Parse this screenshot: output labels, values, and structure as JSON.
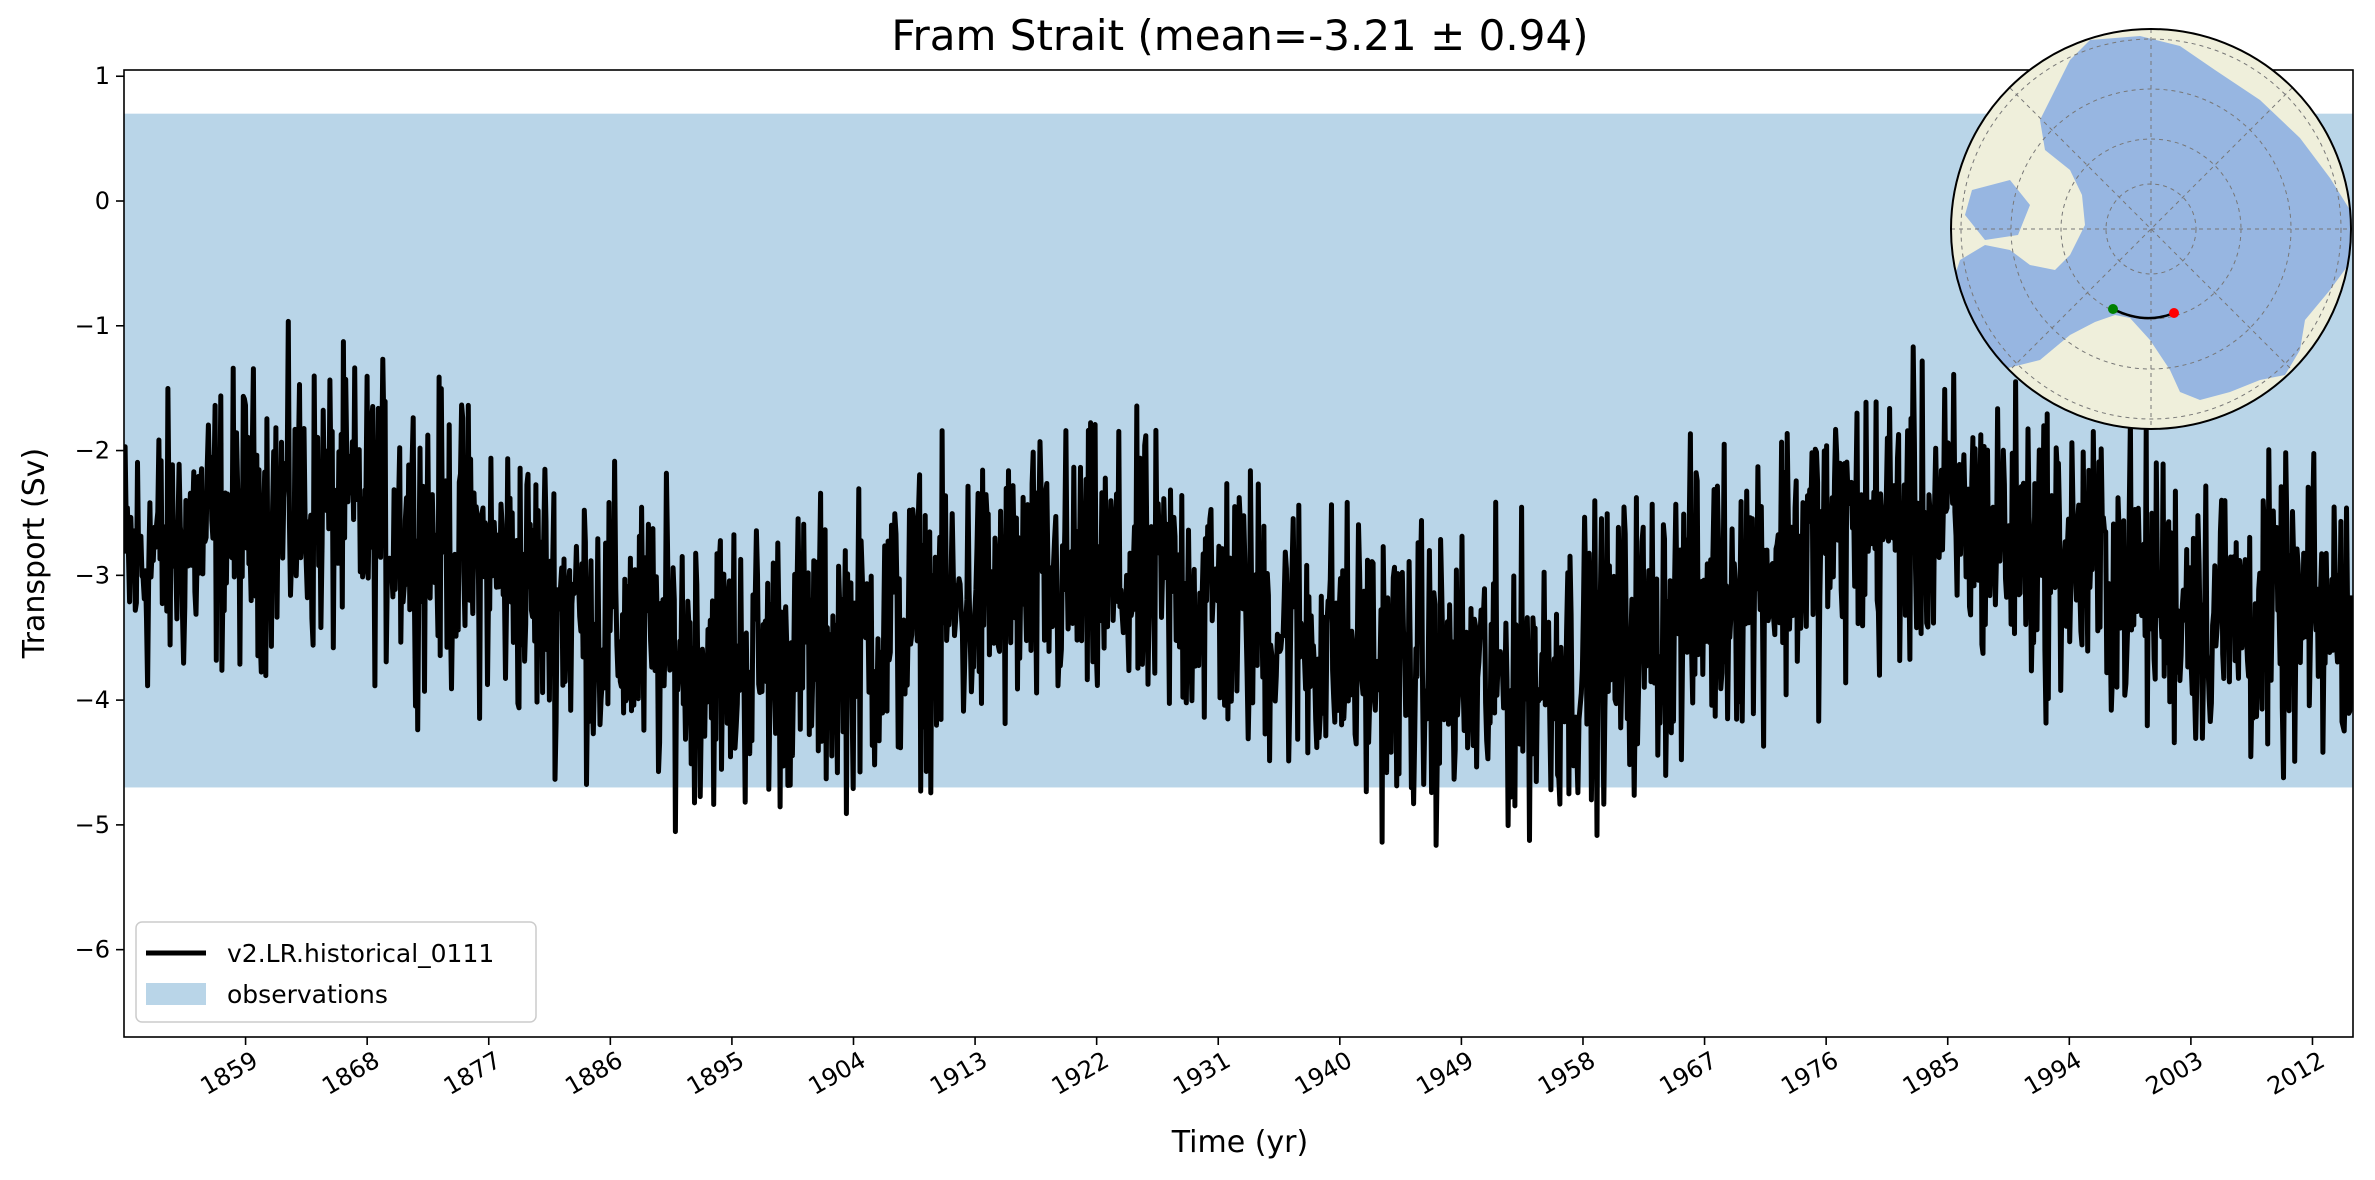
{
  "chart_data": {
    "type": "line",
    "title": "Fram Strait (mean=-3.21 ± 0.94)",
    "xlabel": "Time (yr)",
    "ylabel": "Transport (Sv)",
    "xlim": [
      1850,
      2015
    ],
    "ylim": [
      -6.7,
      1.05
    ],
    "xticks": [
      1859,
      1868,
      1877,
      1886,
      1895,
      1904,
      1913,
      1922,
      1931,
      1940,
      1949,
      1958,
      1967,
      1976,
      1985,
      1994,
      2003,
      2012
    ],
    "yticks": [
      -6,
      -5,
      -4,
      -3,
      -2,
      -1,
      0,
      1
    ],
    "ytick_labels": [
      "−6",
      "−5",
      "−4",
      "−3",
      "−2",
      "−1",
      "0",
      "1"
    ],
    "series": [
      {
        "name": "v2.LR.historical_0111",
        "color": "#000000",
        "x_start": 1850,
        "x_step_years": 0.0833,
        "mean": -3.21,
        "std": 0.94,
        "values": []
      }
    ],
    "observations": {
      "name": "observations",
      "lower": -4.7,
      "upper": 0.7,
      "color": "#b9d5e8"
    },
    "legend": {
      "location": "lower-left"
    },
    "grid": false,
    "inset_map": {
      "projection": "north-polar-stereographic",
      "ocean_color": "#97b6e1",
      "land_color": "#efefdb",
      "transect_start_color": "#008000",
      "transect_end_color": "#ff0000"
    }
  }
}
